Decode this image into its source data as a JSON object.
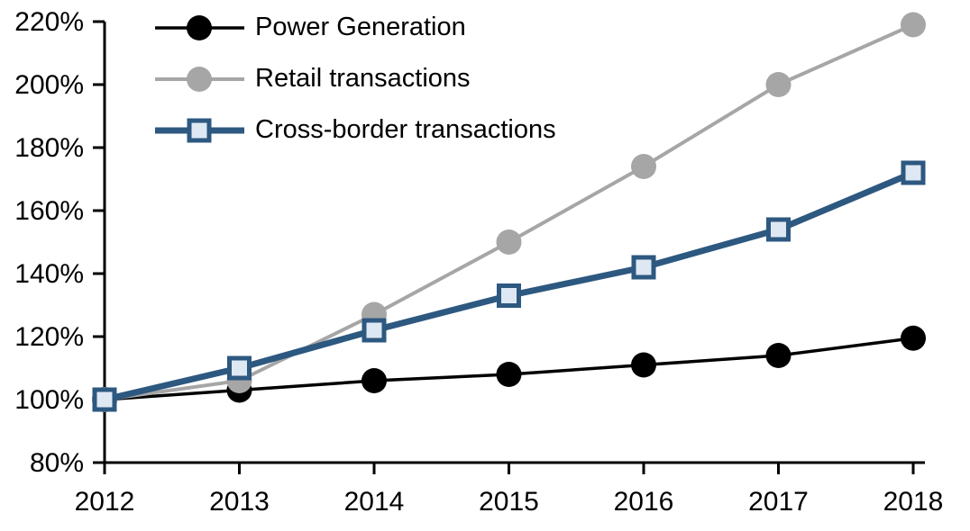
{
  "chart_data": {
    "type": "line",
    "title": "",
    "xlabel": "",
    "ylabel": "",
    "categories": [
      "2012",
      "2013",
      "2014",
      "2015",
      "2016",
      "2017",
      "2018"
    ],
    "series": [
      {
        "name": "Power Generation",
        "values": [
          100,
          103,
          106,
          108,
          111,
          114,
          119.5
        ],
        "color": "#000000",
        "marker": "circle",
        "marker_fill": "#000000",
        "line_width": 3.5
      },
      {
        "name": "Retail transactions",
        "values": [
          100,
          106,
          127,
          150,
          174,
          200,
          219
        ],
        "color": "#a6a6a6",
        "marker": "circle",
        "marker_fill": "#a6a6a6",
        "line_width": 4
      },
      {
        "name": "Cross-border transactions",
        "values": [
          100,
          110,
          122,
          133,
          142,
          154,
          172
        ],
        "color": "#2d5880",
        "marker": "square",
        "marker_fill": "#dee8f3",
        "line_width": 7
      }
    ],
    "ylim": [
      80,
      220
    ],
    "ytick_step": 20,
    "yticklabels": [
      "80%",
      "100%",
      "120%",
      "140%",
      "160%",
      "180%",
      "200%",
      "220%"
    ],
    "ytick_suffix": "%",
    "grid": false,
    "legend_position": "top-left",
    "axis_color": "#000000"
  }
}
